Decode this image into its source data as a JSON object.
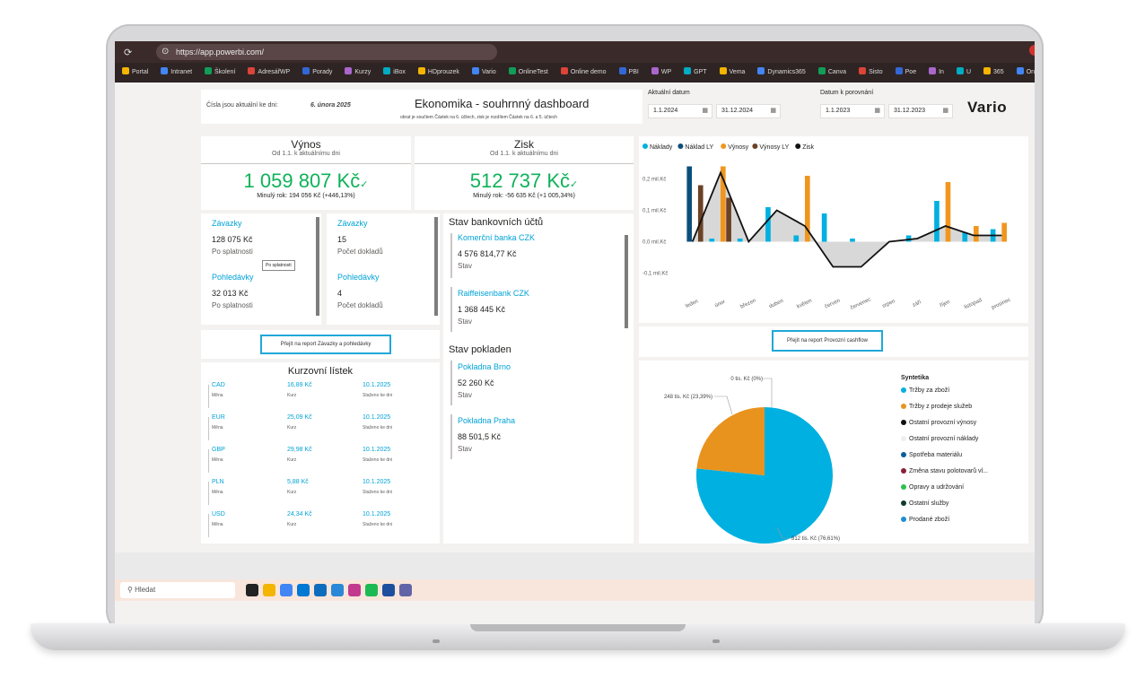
{
  "browser": {
    "url": "https://app.powerbi.com/",
    "bookmarks": [
      "Portal",
      "Intranet",
      "Školení",
      "AdresářWP",
      "Porady",
      "Kurzy",
      "iBox",
      "HDprouzek",
      "Vario",
      "OnlineTest",
      "Online demo",
      "PBI",
      "WP",
      "GPT",
      "Vema",
      "Dynamics365",
      "Canva",
      "Sisto",
      "Poe",
      "In",
      "U",
      "365",
      "OneDrive"
    ]
  },
  "header": {
    "date_label": "Čísla jsou aktuální ke dni:",
    "date_value": "6. února 2025",
    "title": "Ekonomika - souhrnný dashboard",
    "subtitle": "obrat je součtem Částek na 6. účtech, zisk je rozdílem Částek na  6. a 5. účtech",
    "current_date_label": "Aktuální datum",
    "current_from": "1.1.2024",
    "current_to": "31.12.2024",
    "compare_label": "Datum k porovnání",
    "compare_from": "1.1.2023",
    "compare_to": "31.12.2023",
    "logo": "Vario"
  },
  "kpi": {
    "revenue": {
      "title": "Výnos",
      "sub": "Od 1.1. k aktuálnímu dni",
      "value": "1 059 807 Kč",
      "check": "✓",
      "prev": "Minulý rok: 194 056 Kč (+446,13%)"
    },
    "profit": {
      "title": "Zisk",
      "sub": "Od 1.1. k aktuálnímu dni",
      "value": "512 737 Kč",
      "check": "✓",
      "prev": "Minulý rok: -56 635 Kč (+1 005,34%)"
    }
  },
  "receivables": {
    "left": [
      {
        "title": "Závazky",
        "value": "128 075 Kč",
        "label": "Po splatnosti"
      },
      {
        "title": "Pohledávky",
        "value": "32 013 Kč",
        "label": "Po splatnosti"
      }
    ],
    "tooltip": "Po splatnosti",
    "right": [
      {
        "title": "Závazky",
        "value": "15",
        "label": "Počet dokladů"
      },
      {
        "title": "Pohledávky",
        "value": "4",
        "label": "Počet dokladů"
      }
    ],
    "button": "Přejít na report Závazky a pohledávky"
  },
  "banks": {
    "title": "Stav bankovních účtů",
    "items": [
      {
        "name": "Komerční banka CZK",
        "value": "4 576 814,77 Kč",
        "label": "Stav"
      },
      {
        "name": "Raiffeisenbank CZK",
        "value": "1 368 445 Kč",
        "label": "Stav"
      }
    ],
    "cash_title": "Stav pokladen",
    "cash": [
      {
        "name": "Pokladna Brno",
        "value": "52 260 Kč",
        "label": "Stav"
      },
      {
        "name": "Pokladna Praha",
        "value": "88 501,5 Kč",
        "label": "Stav"
      }
    ]
  },
  "fx": {
    "title": "Kurzovní lístek",
    "rows": [
      {
        "cur": "CAD",
        "rate": "16,89 Kč",
        "date": "10.1.2025"
      },
      {
        "cur": "EUR",
        "rate": "25,09 Kč",
        "date": "10.1.2025"
      },
      {
        "cur": "GBP",
        "rate": "29,98 Kč",
        "date": "10.1.2025"
      },
      {
        "cur": "PLN",
        "rate": "5,88 Kč",
        "date": "10.1.2025"
      },
      {
        "cur": "USD",
        "rate": "24,34 Kč",
        "date": "10.1.2025"
      }
    ],
    "cur_label": "Měna",
    "rate_label": "Kurz",
    "date_label": "Staženo ke dni"
  },
  "cashflow_button": "Přejít na report Provozní cashflow",
  "chart_data": [
    {
      "type": "bar",
      "categories": [
        "leden",
        "únor",
        "březen",
        "duben",
        "květen",
        "červen",
        "červenec",
        "srpen",
        "září",
        "říjen",
        "listopad",
        "prosinec"
      ],
      "ylim": [
        -0.15,
        0.25
      ],
      "yticks": [
        -0.1,
        0.0,
        0.1,
        0.2
      ],
      "ytick_labels": [
        "-0,1 mil.Kč",
        "0,0 mil.Kč",
        "0,1 mil.Kč",
        "0,2 mil.Kč"
      ],
      "legend_position": "top-left",
      "series": [
        {
          "name": "Náklady",
          "color": "#00b0e0",
          "values": [
            0.0,
            0.01,
            0.01,
            0.11,
            0.02,
            0.09,
            0.01,
            0.0,
            0.02,
            0.13,
            0.03,
            0.04
          ]
        },
        {
          "name": "Náklad LY",
          "color": "#0b4f7a",
          "values": [
            0.24,
            0.0,
            0.0,
            0.0,
            0.0,
            0.0,
            0.0,
            0.0,
            0.0,
            0.0,
            0.0,
            0.0
          ]
        },
        {
          "name": "Výnosy",
          "color": "#f0961e",
          "values": [
            0.0,
            0.24,
            0.0,
            0.0,
            0.21,
            0.0,
            0.0,
            0.0,
            0.0,
            0.19,
            0.05,
            0.06
          ]
        },
        {
          "name": "Výnosy LY",
          "color": "#6b4226",
          "values": [
            0.0,
            0.0,
            0.0,
            0.0,
            0.0,
            0.0,
            0.0,
            0.0,
            0.0,
            0.0,
            0.0,
            0.0
          ]
        },
        {
          "name": "Zisk",
          "color": "#111111",
          "values": [
            0.0,
            0.22,
            0.0,
            0.1,
            0.05,
            -0.08,
            -0.08,
            0.0,
            0.01,
            0.05,
            0.02,
            0.02
          ]
        }
      ],
      "extra_bars": {
        "series": "Náklad LY / Výnosy LY",
        "values": [
          0.18,
          0.14,
          0.0,
          0.0,
          0.0,
          0.0,
          0.0,
          0.0,
          0.0,
          0.0,
          0.0,
          0.0
        ]
      }
    },
    {
      "type": "pie",
      "legend_title": "Syntetika",
      "slices": [
        {
          "label": "Tržby za zboží",
          "value": 76.61,
          "color": "#00b0e0",
          "data_label": "812 tis. Kč (76,61%)"
        },
        {
          "label": "Tržby z prodeje služeb",
          "value": 23.39,
          "color": "#e8931e",
          "data_label": "248 tis. Kč (23,39%)"
        },
        {
          "label": "Ostatní provozní výnosy",
          "value": 0.0,
          "color": "#111111",
          "data_label": "0 tis. Kč (0%)"
        }
      ],
      "legend": [
        {
          "label": "Tržby za zboží",
          "color": "#00b0e0"
        },
        {
          "label": "Tržby z prodeje služeb",
          "color": "#e8931e"
        },
        {
          "label": "Ostatní provozní výnosy",
          "color": "#111111"
        },
        {
          "label": "Ostatní provozní náklady",
          "color": "#eeeeee"
        },
        {
          "label": "Spotřeba materiálu",
          "color": "#0b5e9e"
        },
        {
          "label": "Změna stavu polotovarů vl...",
          "color": "#8a1f3a"
        },
        {
          "label": "Opravy a udržování",
          "color": "#2ec04f"
        },
        {
          "label": "Ostatní služby",
          "color": "#0f3b2a"
        },
        {
          "label": "Prodané zboží",
          "color": "#1f8fcf"
        }
      ]
    }
  ],
  "taskbar": {
    "search": "Hledat"
  }
}
